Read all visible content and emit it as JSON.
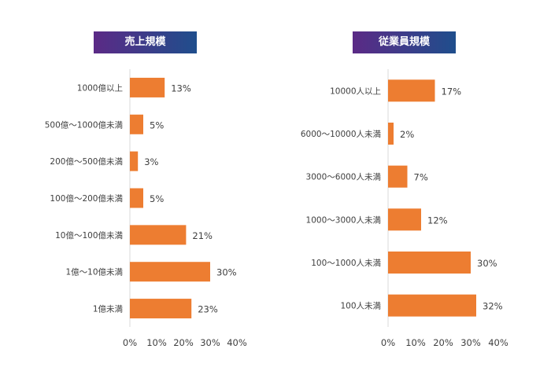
{
  "colors": {
    "bar": "#ED7D31",
    "axis": "#D9D9D9",
    "title_gradient_start": "#5B2A86",
    "title_gradient_end": "#1F4E8C",
    "text": "#404040"
  },
  "chart_data": [
    {
      "type": "bar",
      "orientation": "horizontal",
      "title": "売上規模",
      "categories": [
        "1000億以上",
        "500億～1000億未満",
        "200億～500億未満",
        "100億～200億未満",
        "10億～100億未満",
        "1億～10億未満",
        "1億未満"
      ],
      "values": [
        13,
        5,
        3,
        5,
        21,
        30,
        23
      ],
      "value_labels": [
        "13%",
        "5%",
        "3%",
        "5%",
        "21%",
        "30%",
        "23%"
      ],
      "xlim": [
        0,
        40
      ],
      "xticks": [
        "0%",
        "10%",
        "20%",
        "30%",
        "40%"
      ],
      "grid": false,
      "legend": "none"
    },
    {
      "type": "bar",
      "orientation": "horizontal",
      "title": "従業員規模",
      "categories": [
        "10000人以上",
        "6000～10000人未満",
        "3000～6000人未満",
        "1000～3000人未満",
        "100～1000人未満",
        "100人未満"
      ],
      "values": [
        17,
        2,
        7,
        12,
        30,
        32
      ],
      "value_labels": [
        "17%",
        "2%",
        "7%",
        "12%",
        "30%",
        "32%"
      ],
      "xlim": [
        0,
        40
      ],
      "xticks": [
        "0%",
        "10%",
        "20%",
        "30%",
        "40%"
      ],
      "grid": false,
      "legend": "none"
    }
  ]
}
